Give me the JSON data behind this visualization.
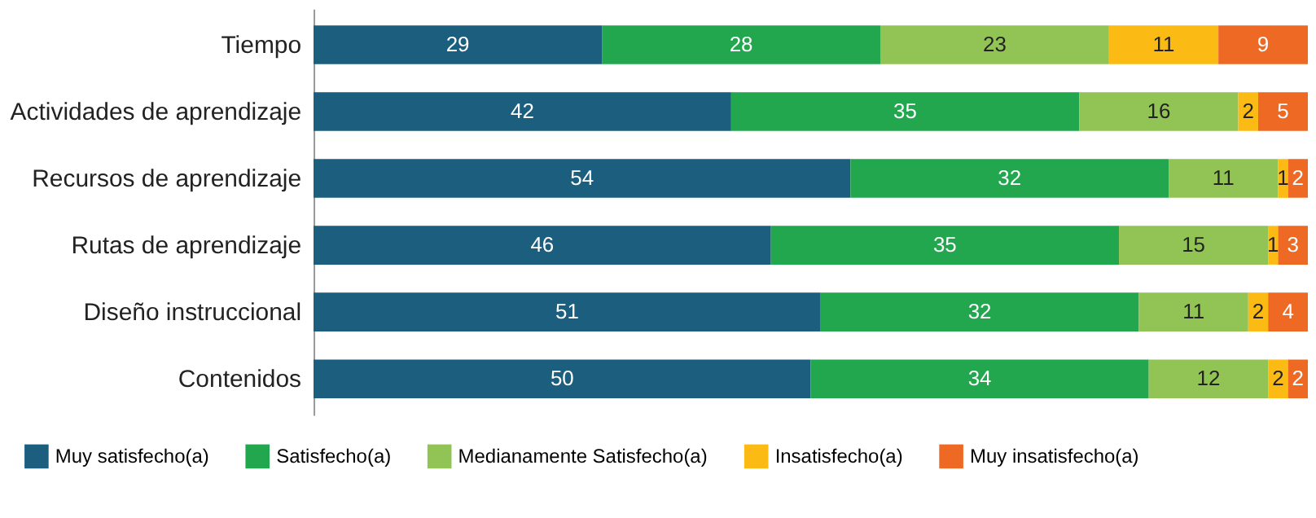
{
  "chart_data": {
    "type": "bar",
    "orientation": "horizontal",
    "stacked": true,
    "data_labels": true,
    "legend": "bottom",
    "categories": [
      "Tiempo",
      "Actividades de aprendizaje",
      "Recursos de aprendizaje",
      "Rutas de aprendizaje",
      "Diseño instruccional",
      "Contenidos"
    ],
    "series": [
      {
        "name": "Muy satisfecho(a)",
        "color": "#1b5e7e",
        "values": [
          29,
          42,
          54,
          46,
          51,
          50
        ]
      },
      {
        "name": "Satisfecho(a)",
        "color": "#22a64e",
        "values": [
          28,
          35,
          32,
          35,
          32,
          34
        ]
      },
      {
        "name": "Medianamente Satisfecho(a)",
        "color": "#92c455",
        "values": [
          23,
          16,
          11,
          15,
          11,
          12
        ]
      },
      {
        "name": "Insatisfecho(a)",
        "color": "#fbbb14",
        "values": [
          11,
          2,
          1,
          1,
          2,
          2
        ]
      },
      {
        "name": "Muy insatisfecho(a)",
        "color": "#ee6a24",
        "values": [
          9,
          5,
          2,
          3,
          4,
          2
        ]
      }
    ]
  }
}
